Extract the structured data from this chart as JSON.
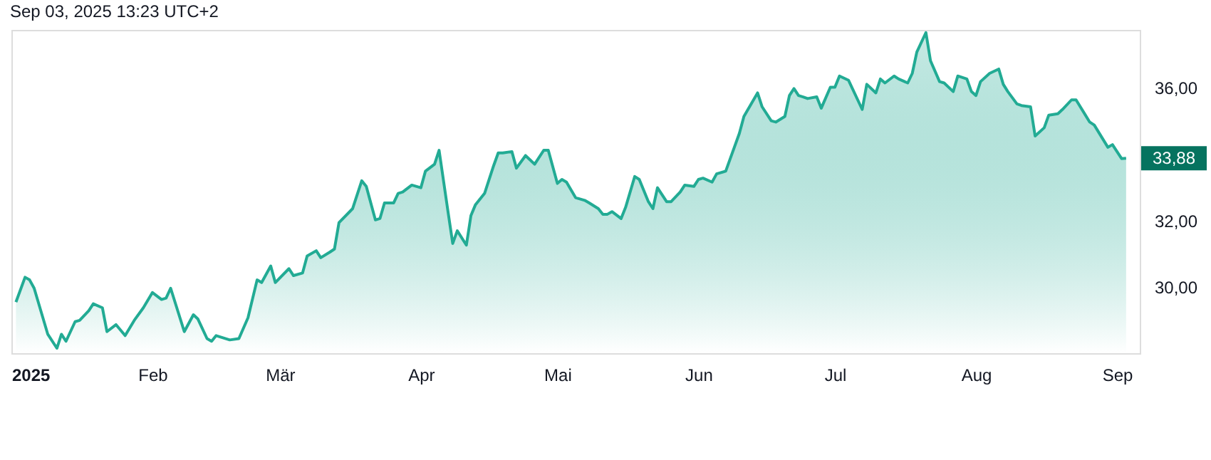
{
  "chart_data": {
    "type": "area",
    "annotations": [
      "Sep 03, 2025 13:23 UTC+2",
      "33,88"
    ],
    "x": [
      "2025-01-02",
      "2025-01-04",
      "2025-01-05",
      "2025-01-06",
      "2025-01-09",
      "2025-01-11",
      "2025-01-12",
      "2025-01-13",
      "2025-01-15",
      "2025-01-16",
      "2025-01-18",
      "2025-01-19",
      "2025-01-21",
      "2025-01-22",
      "2025-01-24",
      "2025-01-26",
      "2025-01-28",
      "2025-01-30",
      "2025-02-01",
      "2025-02-03",
      "2025-02-04",
      "2025-02-05",
      "2025-02-08",
      "2025-02-10",
      "2025-02-11",
      "2025-02-13",
      "2025-02-14",
      "2025-02-15",
      "2025-02-18",
      "2025-02-20",
      "2025-02-22",
      "2025-02-24",
      "2025-02-25",
      "2025-02-27",
      "2025-02-28",
      "2025-03-03",
      "2025-03-04",
      "2025-03-06",
      "2025-03-07",
      "2025-03-09",
      "2025-03-10",
      "2025-03-12",
      "2025-03-13",
      "2025-03-14",
      "2025-03-17",
      "2025-03-19",
      "2025-03-20",
      "2025-03-22",
      "2025-03-23",
      "2025-03-24",
      "2025-03-26",
      "2025-03-27",
      "2025-03-28",
      "2025-03-30",
      "2025-04-01",
      "2025-04-02",
      "2025-04-04",
      "2025-04-05",
      "2025-04-07",
      "2025-04-08",
      "2025-04-09",
      "2025-04-11",
      "2025-04-12",
      "2025-04-13",
      "2025-04-15",
      "2025-04-17",
      "2025-04-18",
      "2025-04-19",
      "2025-04-21",
      "2025-04-22",
      "2025-04-24",
      "2025-04-25",
      "2025-04-26",
      "2025-04-28",
      "2025-04-29",
      "2025-05-01",
      "2025-05-02",
      "2025-05-03",
      "2025-05-05",
      "2025-05-07",
      "2025-05-08",
      "2025-05-10",
      "2025-05-11",
      "2025-05-12",
      "2025-05-13",
      "2025-05-15",
      "2025-05-16",
      "2025-05-18",
      "2025-05-19",
      "2025-05-21",
      "2025-05-22",
      "2025-05-23",
      "2025-05-25",
      "2025-05-26",
      "2025-05-28",
      "2025-05-29",
      "2025-05-31",
      "2025-06-01",
      "2025-06-02",
      "2025-06-04",
      "2025-06-05",
      "2025-06-07",
      "2025-06-08",
      "2025-06-10",
      "2025-06-11",
      "2025-06-14",
      "2025-06-15",
      "2025-06-17",
      "2025-06-18",
      "2025-06-20",
      "2025-06-21",
      "2025-06-22",
      "2025-06-23",
      "2025-06-24",
      "2025-06-25",
      "2025-06-27",
      "2025-06-28",
      "2025-06-30",
      "2025-07-01",
      "2025-07-02",
      "2025-07-04",
      "2025-07-07",
      "2025-07-08",
      "2025-07-10",
      "2025-07-11",
      "2025-07-12",
      "2025-07-14",
      "2025-07-15",
      "2025-07-17",
      "2025-07-18",
      "2025-07-19",
      "2025-07-21",
      "2025-07-22",
      "2025-07-24",
      "2025-07-25",
      "2025-07-27",
      "2025-07-28",
      "2025-07-30",
      "2025-07-31",
      "2025-08-01",
      "2025-08-02",
      "2025-08-04",
      "2025-08-06",
      "2025-08-07",
      "2025-08-08",
      "2025-08-10",
      "2025-08-11",
      "2025-08-13",
      "2025-08-14",
      "2025-08-16",
      "2025-08-17",
      "2025-08-19",
      "2025-08-20",
      "2025-08-22",
      "2025-08-23",
      "2025-08-26",
      "2025-08-27",
      "2025-08-30",
      "2025-08-31",
      "2025-09-02",
      "2025-09-03"
    ],
    "series": [
      {
        "color": "#22ab94",
        "values": [
          29.54,
          30.29,
          30.21,
          29.96,
          28.57,
          28.15,
          28.57,
          28.36,
          28.95,
          28.99,
          29.28,
          29.49,
          29.37,
          28.65,
          28.86,
          28.53,
          28.99,
          29.37,
          29.83,
          29.62,
          29.66,
          29.96,
          28.65,
          29.16,
          29.03,
          28.44,
          28.36,
          28.53,
          28.4,
          28.44,
          29.07,
          30.21,
          30.13,
          30.63,
          30.13,
          30.55,
          30.34,
          30.42,
          30.93,
          31.09,
          30.88,
          31.05,
          31.14,
          31.94,
          32.36,
          33.2,
          33.03,
          32.02,
          32.06,
          32.53,
          32.53,
          32.82,
          32.86,
          33.07,
          32.99,
          33.49,
          33.7,
          34.12,
          32.23,
          31.31,
          31.69,
          31.26,
          32.15,
          32.48,
          32.82,
          33.66,
          34.04,
          34.04,
          34.08,
          33.58,
          33.96,
          33.83,
          33.7,
          34.12,
          34.12,
          33.12,
          33.24,
          33.16,
          32.69,
          32.61,
          32.53,
          32.36,
          32.19,
          32.19,
          32.27,
          32.06,
          32.4,
          33.33,
          33.24,
          32.57,
          32.36,
          32.99,
          32.57,
          32.57,
          32.86,
          33.07,
          33.03,
          33.24,
          33.28,
          33.16,
          33.41,
          33.49,
          33.87,
          34.63,
          35.14,
          35.85,
          35.43,
          35.01,
          34.97,
          35.14,
          35.77,
          35.98,
          35.77,
          35.73,
          35.68,
          35.73,
          35.39,
          36.02,
          36.02,
          36.36,
          36.23,
          35.35,
          36.11,
          35.85,
          36.27,
          36.15,
          36.36,
          36.27,
          36.15,
          36.44,
          37.08,
          37.67,
          36.82,
          36.19,
          36.15,
          35.89,
          36.36,
          36.27,
          35.89,
          35.77,
          36.19,
          36.44,
          36.57,
          36.11,
          35.89,
          35.52,
          35.47,
          35.43,
          34.55,
          34.8,
          35.18,
          35.22,
          35.35,
          35.64,
          35.64,
          34.97,
          34.88,
          34.21,
          34.29,
          33.87,
          33.88
        ]
      }
    ],
    "xlim": [
      "2025-01-01",
      "2025-09-06"
    ],
    "xticks": [
      {
        "value": "2025-01-01",
        "label": "2025"
      },
      {
        "value": "2025-02-01",
        "label": "Feb"
      },
      {
        "value": "2025-03-01",
        "label": "Mär"
      },
      {
        "value": "2025-04-01",
        "label": "Apr"
      },
      {
        "value": "2025-05-01",
        "label": "Mai"
      },
      {
        "value": "2025-06-01",
        "label": "Jun"
      },
      {
        "value": "2025-07-01",
        "label": "Jul"
      },
      {
        "value": "2025-08-01",
        "label": "Aug"
      },
      {
        "value": "2025-09-01",
        "label": "Sep"
      }
    ],
    "ylim": [
      28.0,
      37.75
    ],
    "yticks": [
      {
        "value": 30,
        "label": "30,00"
      },
      {
        "value": 32,
        "label": "32,00"
      },
      {
        "value": 36,
        "label": "36,00"
      }
    ],
    "grid": false
  }
}
